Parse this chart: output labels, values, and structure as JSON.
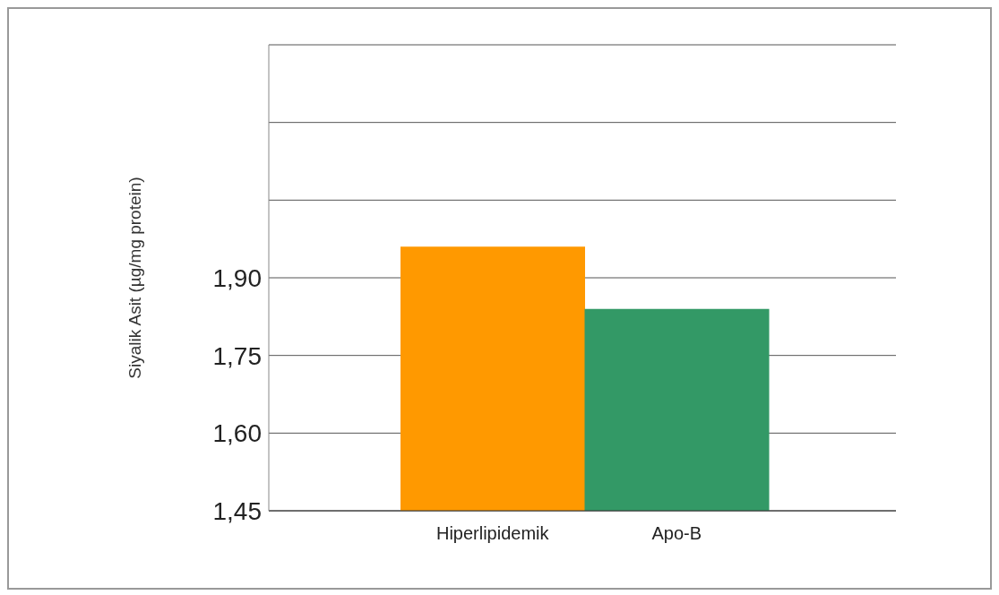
{
  "chart_data": {
    "type": "bar",
    "ylabel": "Siyalik Asit (µg/mg protein)",
    "categories": [
      "Hiperlipidemik",
      "Apo-B"
    ],
    "values": [
      1.96,
      1.84
    ],
    "colors": [
      "#ff9900",
      "#339966"
    ],
    "ylim": [
      1.45,
      2.35
    ],
    "yticks": [
      {
        "value": 1.45,
        "label": "1,45"
      },
      {
        "value": 1.6,
        "label": "1,60"
      },
      {
        "value": 1.75,
        "label": "1,75"
      },
      {
        "value": 1.9,
        "label": "1,90"
      },
      {
        "value": 2.05,
        "label": null
      },
      {
        "value": 2.2,
        "label": null
      }
    ],
    "grid": "y"
  }
}
